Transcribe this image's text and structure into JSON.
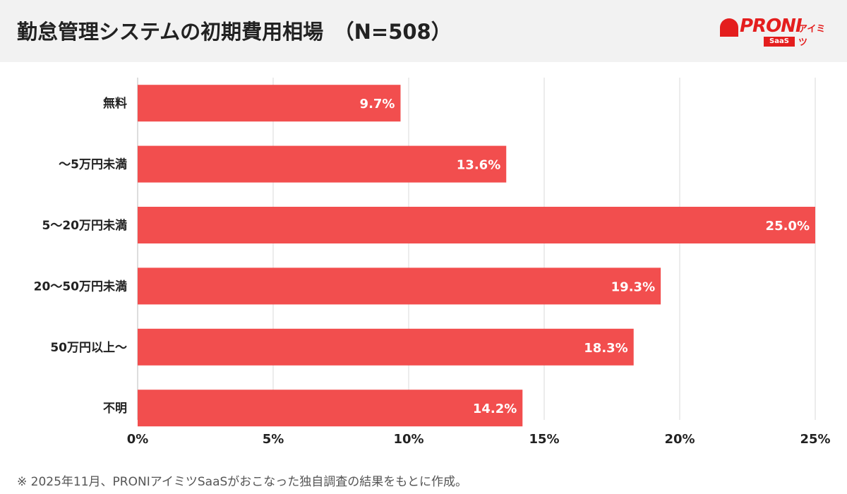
{
  "header": {
    "title": "勤怠管理システムの初期費用相場　（N=508）",
    "logo_text": "PRONI",
    "logo_sub": "アイミツ",
    "logo_badge": "SaaS"
  },
  "chart_data": {
    "type": "bar",
    "orientation": "horizontal",
    "categories": [
      "無料",
      "〜5万円未満",
      "5〜20万円未満",
      "20〜50万円未満",
      "50万円以上〜",
      "不明"
    ],
    "values": [
      9.7,
      13.6,
      25.0,
      19.3,
      18.3,
      14.2
    ],
    "data_labels": [
      "9.7%",
      "13.6%",
      "25.0%",
      "19.3%",
      "18.3%",
      "14.2%"
    ],
    "xlim": [
      0,
      25
    ],
    "xticks": [
      0,
      5,
      10,
      15,
      20,
      25
    ],
    "xtick_labels": [
      "0%",
      "5%",
      "10%",
      "15%",
      "20%",
      "25%"
    ],
    "grid": true,
    "bar_color": "#f24e4e"
  },
  "footnote": "※ 2025年11月、PRONIアイミツSaaSがおこなった独自調査の結果をもとに作成。"
}
